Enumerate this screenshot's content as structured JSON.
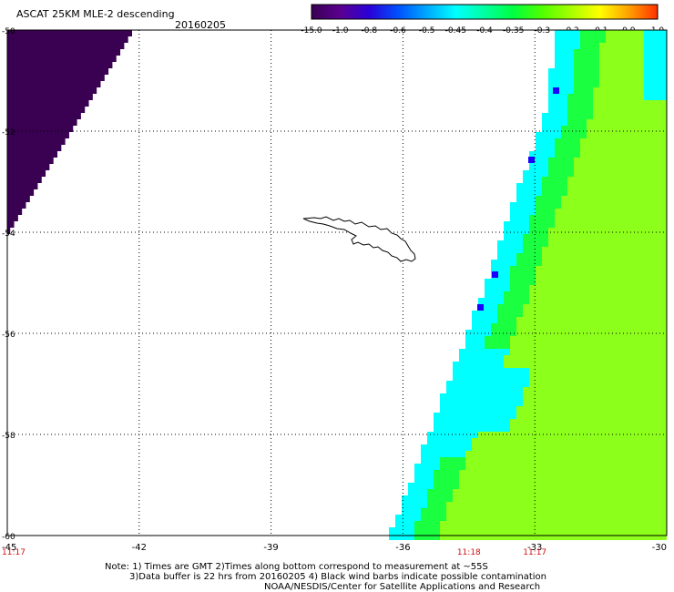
{
  "header": {
    "title": "ASCAT 25KM MLE-2 descending",
    "date": "20160205"
  },
  "colorbar": {
    "ticks": [
      "-15.0",
      "-1.0",
      "-0.8",
      "-0.6",
      "-0.5",
      "-0.45",
      "-0.4",
      "-0.35",
      "-0.3",
      "-0.2",
      "-0.1",
      "0.0",
      "1.0"
    ],
    "colors": [
      "#3a0052",
      "#5a0090",
      "#2a00d8",
      "#0050ff",
      "#00a8ff",
      "#00ffff",
      "#00ffa0",
      "#00ff40",
      "#50ff00",
      "#a8ff00",
      "#ffff00",
      "#ffa000",
      "#ff3000"
    ]
  },
  "map": {
    "lat_labels": [
      "-50",
      "-52",
      "-54",
      "-56",
      "-58",
      "-60"
    ],
    "lon_labels": [
      "-45",
      "-42",
      "-39",
      "-36",
      "-33",
      "-30"
    ],
    "time_labels": [
      {
        "text": "11:17",
        "lon": -45
      },
      {
        "text": "11:18",
        "lon": -34.5
      },
      {
        "text": "11:17",
        "lon": -33
      }
    ],
    "time_color": "#d01010",
    "field_colors": {
      "deep_purple": "#3a0052",
      "cyan": "#00ffff",
      "light_green": "#8cff1a",
      "green": "#1aff40",
      "blue": "#1a00ff"
    }
  },
  "notes": {
    "line1": "Note: 1) Times are GMT 2)Times along bottom correspond to measurement at ~55S",
    "line2": "3)Data buffer is 22 hrs from 20160205 4) Black wind barbs indicate possible contamination",
    "line3": "NOAA/NESDIS/Center for Satellite Applications and Research"
  }
}
